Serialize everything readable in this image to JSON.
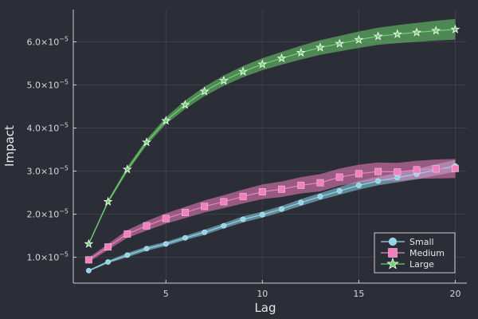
{
  "chart_data": {
    "type": "line",
    "xlabel": "Lag",
    "ylabel": "Impact",
    "xlim": [
      0.2,
      20.6
    ],
    "ylim": [
      4e-06,
      6.75e-05
    ],
    "x_ticks": [
      5,
      10,
      15,
      20
    ],
    "x_tick_labels": [
      "5",
      "10",
      "15",
      "20"
    ],
    "y_ticks": [
      1e-05,
      2e-05,
      3e-05,
      4e-05,
      5e-05,
      6e-05
    ],
    "y_tick_labels": [
      {
        "mantissa": "1.0×10",
        "exponent": "−5"
      },
      {
        "mantissa": "2.0×10",
        "exponent": "−5"
      },
      {
        "mantissa": "3.0×10",
        "exponent": "−5"
      },
      {
        "mantissa": "4.0×10",
        "exponent": "−5"
      },
      {
        "mantissa": "5.0×10",
        "exponent": "−5"
      },
      {
        "mantissa": "6.0×10",
        "exponent": "−5"
      }
    ],
    "grid": true,
    "legend_position": "bottom-right",
    "background": "#2b2d37",
    "x": [
      1,
      2,
      3,
      4,
      5,
      6,
      7,
      8,
      9,
      10,
      11,
      12,
      13,
      14,
      15,
      16,
      17,
      18,
      19,
      20
    ],
    "series": [
      {
        "name": "Small",
        "color": "#8fd6e8",
        "marker": "circle",
        "values": [
          6.9e-06,
          8.9e-06,
          1.05e-05,
          1.2e-05,
          1.31e-05,
          1.45e-05,
          1.58e-05,
          1.73e-05,
          1.88e-05,
          1.99e-05,
          2.12e-05,
          2.27e-05,
          2.41e-05,
          2.54e-05,
          2.67e-05,
          2.77e-05,
          2.85e-05,
          2.93e-05,
          3.03e-05,
          3.12e-05
        ],
        "lower": [
          6.7e-06,
          8.6e-06,
          1e-05,
          1.15e-05,
          1.26e-05,
          1.4e-05,
          1.52e-05,
          1.67e-05,
          1.81e-05,
          1.92e-05,
          2.05e-05,
          2.19e-05,
          2.33e-05,
          2.45e-05,
          2.57e-05,
          2.67e-05,
          2.74e-05,
          2.81e-05,
          2.9e-05,
          2.98e-05
        ],
        "upper": [
          7.1e-06,
          9.2e-06,
          1.1e-05,
          1.25e-05,
          1.36e-05,
          1.5e-05,
          1.64e-05,
          1.79e-05,
          1.95e-05,
          2.06e-05,
          2.19e-05,
          2.35e-05,
          2.49e-05,
          2.63e-05,
          2.77e-05,
          2.87e-05,
          2.96e-05,
          3.05e-05,
          3.16e-05,
          3.26e-05
        ]
      },
      {
        "name": "Medium",
        "color": "#f27fbf",
        "marker": "square",
        "values": [
          9.4e-06,
          1.24e-05,
          1.54e-05,
          1.73e-05,
          1.9e-05,
          2.04e-05,
          2.18e-05,
          2.29e-05,
          2.41e-05,
          2.52e-05,
          2.58e-05,
          2.67e-05,
          2.73e-05,
          2.86e-05,
          2.94e-05,
          2.99e-05,
          2.98e-05,
          3.03e-05,
          3.05e-05,
          3.06e-05
        ],
        "lower": [
          8.9e-06,
          1.17e-05,
          1.45e-05,
          1.62e-05,
          1.78e-05,
          1.91e-05,
          2.04e-05,
          2.14e-05,
          2.25e-05,
          2.35e-05,
          2.4e-05,
          2.48e-05,
          2.53e-05,
          2.66e-05,
          2.73e-05,
          2.78e-05,
          2.77e-05,
          2.82e-05,
          2.83e-05,
          2.84e-05
        ],
        "upper": [
          9.9e-06,
          1.31e-05,
          1.63e-05,
          1.84e-05,
          2.02e-05,
          2.17e-05,
          2.32e-05,
          2.44e-05,
          2.57e-05,
          2.69e-05,
          2.76e-05,
          2.86e-05,
          2.93e-05,
          3.06e-05,
          3.15e-05,
          3.2e-05,
          3.19e-05,
          3.24e-05,
          3.27e-05,
          3.28e-05
        ]
      },
      {
        "name": "Large",
        "color": "#6ed36e",
        "marker": "star",
        "values": [
          1.31e-05,
          2.29e-05,
          3.04e-05,
          3.67e-05,
          4.17e-05,
          4.54e-05,
          4.85e-05,
          5.1e-05,
          5.31e-05,
          5.48e-05,
          5.62e-05,
          5.75e-05,
          5.87e-05,
          5.96e-05,
          6.05e-05,
          6.13e-05,
          6.18e-05,
          6.22e-05,
          6.26e-05,
          6.29e-05
        ],
        "lower": [
          1.28e-05,
          2.25e-05,
          2.98e-05,
          3.6e-05,
          4.09e-05,
          4.44e-05,
          4.74e-05,
          4.98e-05,
          5.18e-05,
          5.34e-05,
          5.47e-05,
          5.59e-05,
          5.7e-05,
          5.78e-05,
          5.86e-05,
          5.93e-05,
          5.97e-05,
          6e-05,
          6.03e-05,
          6.05e-05
        ],
        "upper": [
          1.34e-05,
          2.33e-05,
          3.1e-05,
          3.74e-05,
          4.25e-05,
          4.64e-05,
          4.96e-05,
          5.22e-05,
          5.44e-05,
          5.62e-05,
          5.77e-05,
          5.91e-05,
          6.04e-05,
          6.14e-05,
          6.24e-05,
          6.33e-05,
          6.39e-05,
          6.44e-05,
          6.49e-05,
          6.53e-05
        ]
      }
    ]
  }
}
